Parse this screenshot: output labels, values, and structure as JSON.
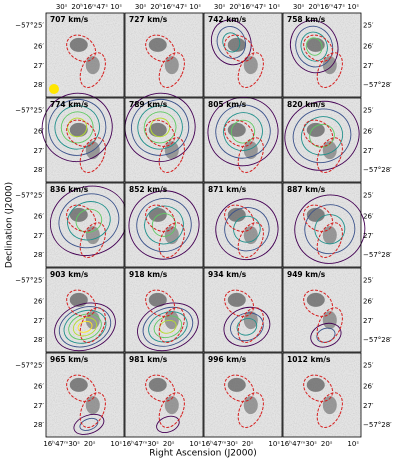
{
  "panels": [
    {
      "label": "707 km/s"
    },
    {
      "label": "727 km/s"
    },
    {
      "label": "742 km/s"
    },
    {
      "label": "758 km/s"
    },
    {
      "label": "774 km/s"
    },
    {
      "label": "789 km/s"
    },
    {
      "label": "805 km/s"
    },
    {
      "label": "820 km/s"
    },
    {
      "label": "836 km/s"
    },
    {
      "label": "852 km/s"
    },
    {
      "label": "871 km/s"
    },
    {
      "label": "887 km/s"
    },
    {
      "label": "903 km/s"
    },
    {
      "label": "918 km/s"
    },
    {
      "label": "934 km/s"
    },
    {
      "label": "949 km/s"
    },
    {
      "label": "965 km/s"
    },
    {
      "label": "981 km/s"
    },
    {
      "label": "996 km/s"
    },
    {
      "label": "1012 km/s"
    }
  ],
  "x_axis": {
    "title": "Right Ascension (J2000)",
    "top_ticks": [
      "30ˢ",
      "20ʰ16ᵐ47ˢ",
      "10ˢ"
    ],
    "bottom_ticks": [
      "16ʰ47ᵐ30ˢ",
      "20ˢ",
      "10ˢ"
    ]
  },
  "y_axis": {
    "title": "Declination (J2000)",
    "left_ticks": [
      "−57°25′",
      "26′",
      "27′",
      "28′"
    ],
    "right_ticks": [
      "25′",
      "26′",
      "27′",
      "−57°28′"
    ]
  }
}
